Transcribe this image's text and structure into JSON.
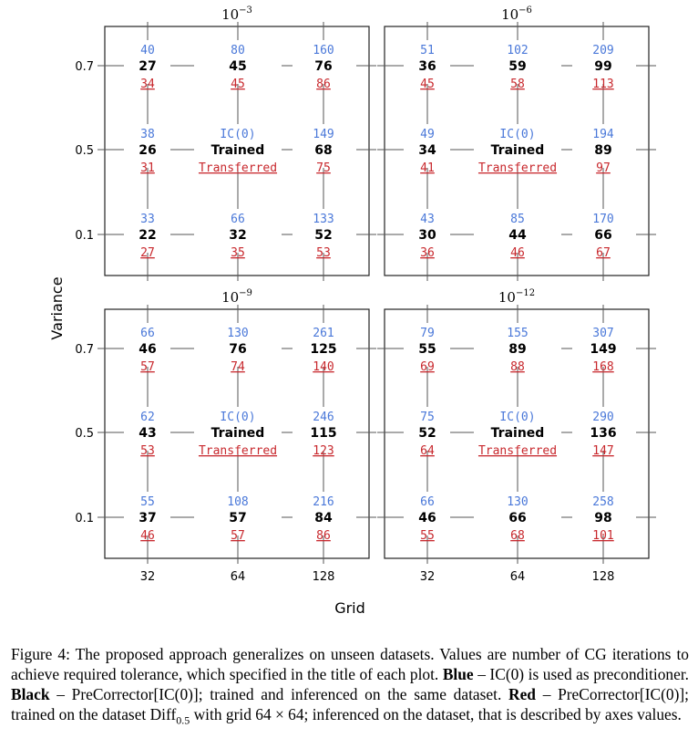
{
  "chart_data": {
    "type": "table",
    "xlabel": "Grid",
    "ylabel": "Variance",
    "x_ticks": [
      "32",
      "64",
      "128"
    ],
    "y_ticks": [
      "0.7",
      "0.5",
      "0.1"
    ],
    "panels": [
      {
        "title_base": "10",
        "title_exp": "−3",
        "rows": [
          {
            "variance": "0.7",
            "cells": [
              {
                "grid": "32",
                "blue": "40",
                "black": "27",
                "red": "34"
              },
              {
                "grid": "64",
                "blue": "80",
                "black": "45",
                "red": "45"
              },
              {
                "grid": "128",
                "blue": "160",
                "black": "76",
                "red": "86"
              }
            ]
          },
          {
            "variance": "0.5",
            "cells": [
              {
                "grid": "32",
                "blue": "38",
                "black": "26",
                "red": "31"
              },
              {
                "grid": "64",
                "blue": "IC(0)",
                "black": "Trained",
                "red": "Transferred"
              },
              {
                "grid": "128",
                "blue": "149",
                "black": "68",
                "red": "75"
              }
            ]
          },
          {
            "variance": "0.1",
            "cells": [
              {
                "grid": "32",
                "blue": "33",
                "black": "22",
                "red": "27"
              },
              {
                "grid": "64",
                "blue": "66",
                "black": "32",
                "red": "35"
              },
              {
                "grid": "128",
                "blue": "133",
                "black": "52",
                "red": "53"
              }
            ]
          }
        ]
      },
      {
        "title_base": "10",
        "title_exp": "−6",
        "rows": [
          {
            "variance": "0.7",
            "cells": [
              {
                "grid": "32",
                "blue": "51",
                "black": "36",
                "red": "45"
              },
              {
                "grid": "64",
                "blue": "102",
                "black": "59",
                "red": "58"
              },
              {
                "grid": "128",
                "blue": "209",
                "black": "99",
                "red": "113"
              }
            ]
          },
          {
            "variance": "0.5",
            "cells": [
              {
                "grid": "32",
                "blue": "49",
                "black": "34",
                "red": "41"
              },
              {
                "grid": "64",
                "blue": "IC(0)",
                "black": "Trained",
                "red": "Transferred"
              },
              {
                "grid": "128",
                "blue": "194",
                "black": "89",
                "red": "97"
              }
            ]
          },
          {
            "variance": "0.1",
            "cells": [
              {
                "grid": "32",
                "blue": "43",
                "black": "30",
                "red": "36"
              },
              {
                "grid": "64",
                "blue": "85",
                "black": "44",
                "red": "46"
              },
              {
                "grid": "128",
                "blue": "170",
                "black": "66",
                "red": "67"
              }
            ]
          }
        ]
      },
      {
        "title_base": "10",
        "title_exp": "−9",
        "rows": [
          {
            "variance": "0.7",
            "cells": [
              {
                "grid": "32",
                "blue": "66",
                "black": "46",
                "red": "57"
              },
              {
                "grid": "64",
                "blue": "130",
                "black": "76",
                "red": "74"
              },
              {
                "grid": "128",
                "blue": "261",
                "black": "125",
                "red": "140"
              }
            ]
          },
          {
            "variance": "0.5",
            "cells": [
              {
                "grid": "32",
                "blue": "62",
                "black": "43",
                "red": "53"
              },
              {
                "grid": "64",
                "blue": "IC(0)",
                "black": "Trained",
                "red": "Transferred"
              },
              {
                "grid": "128",
                "blue": "246",
                "black": "115",
                "red": "123"
              }
            ]
          },
          {
            "variance": "0.1",
            "cells": [
              {
                "grid": "32",
                "blue": "55",
                "black": "37",
                "red": "46"
              },
              {
                "grid": "64",
                "blue": "108",
                "black": "57",
                "red": "57"
              },
              {
                "grid": "128",
                "blue": "216",
                "black": "84",
                "red": "86"
              }
            ]
          }
        ]
      },
      {
        "title_base": "10",
        "title_exp": "−12",
        "rows": [
          {
            "variance": "0.7",
            "cells": [
              {
                "grid": "32",
                "blue": "79",
                "black": "55",
                "red": "69"
              },
              {
                "grid": "64",
                "blue": "155",
                "black": "89",
                "red": "88"
              },
              {
                "grid": "128",
                "blue": "307",
                "black": "149",
                "red": "168"
              }
            ]
          },
          {
            "variance": "0.5",
            "cells": [
              {
                "grid": "32",
                "blue": "75",
                "black": "52",
                "red": "64"
              },
              {
                "grid": "64",
                "blue": "IC(0)",
                "black": "Trained",
                "red": "Transferred"
              },
              {
                "grid": "128",
                "blue": "290",
                "black": "136",
                "red": "147"
              }
            ]
          },
          {
            "variance": "0.1",
            "cells": [
              {
                "grid": "32",
                "blue": "66",
                "black": "46",
                "red": "55"
              },
              {
                "grid": "64",
                "blue": "130",
                "black": "66",
                "red": "68"
              },
              {
                "grid": "128",
                "blue": "258",
                "black": "98",
                "red": "101"
              }
            ]
          }
        ]
      }
    ],
    "colors": {
      "blue": "#4a78d9",
      "black": "#000000",
      "red": "#c8282d",
      "line": "#555555",
      "frame": "#222222"
    }
  },
  "caption": {
    "part1": "Figure 4: The proposed approach generalizes on unseen datasets. Values are number of CG iterations to achieve required tolerance, which specified in the title of each plot.",
    "blue_label": "Blue",
    "part2": "– IC(0) is used as preconditioner.",
    "black_label": "Black",
    "part3": "– PreCorrector[IC(0)]; trained and inferenced on the same dataset.",
    "red_label": "Red",
    "part4": "– PreCorrector[IC(0)]; trained on the dataset Diff",
    "sub": "0.5",
    "part5": "with grid 64 × 64; inferenced on the dataset, that is described by axes values."
  }
}
